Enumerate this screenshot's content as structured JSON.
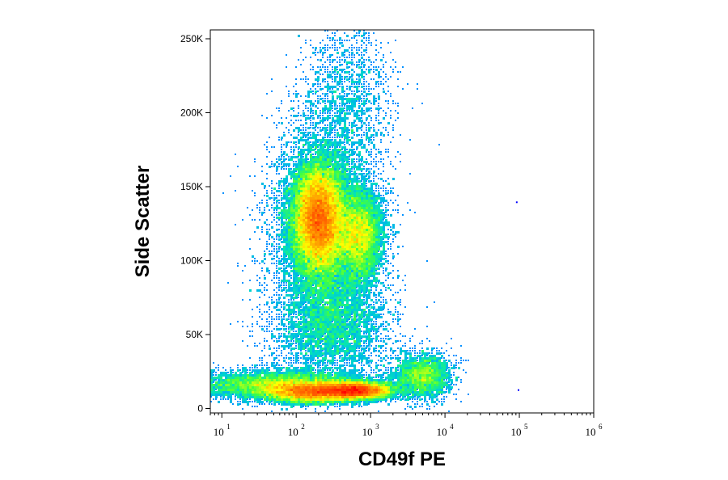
{
  "chart_data": {
    "type": "heatmap",
    "subtype": "flow-cytometry-density-dot-plot",
    "title": "",
    "xlabel": "CD49f PE",
    "ylabel": "Side Scatter",
    "xscale": "log",
    "yscale": "linear",
    "xlim": [
      7,
      1000000
    ],
    "ylim": [
      -3000,
      256000
    ],
    "x_ticks": [
      {
        "value": 10,
        "base": "10",
        "exp": "1"
      },
      {
        "value": 100,
        "base": "10",
        "exp": "2"
      },
      {
        "value": 1000,
        "base": "10",
        "exp": "3"
      },
      {
        "value": 10000,
        "base": "10",
        "exp": "4"
      },
      {
        "value": 100000,
        "base": "10",
        "exp": "5"
      },
      {
        "value": 1000000,
        "base": "10",
        "exp": "6"
      }
    ],
    "y_ticks": [
      {
        "value": 0,
        "label": "0"
      },
      {
        "value": 50000,
        "label": "50K"
      },
      {
        "value": 100000,
        "label": "100K"
      },
      {
        "value": 150000,
        "label": "150K"
      },
      {
        "value": 200000,
        "label": "200K"
      },
      {
        "value": 250000,
        "label": "250K"
      }
    ],
    "grid": false,
    "legend": "none",
    "colormap": [
      "#0000ff",
      "#00a0ff",
      "#00e0c0",
      "#40ff40",
      "#ffff00",
      "#ff8000",
      "#ff0000"
    ],
    "populations": [
      {
        "name": "main population",
        "center_x": 200,
        "center_y": 128000,
        "sd_log10_x": 0.17,
        "sd_y": 18000,
        "weight": 0.3
      },
      {
        "name": "secondary population",
        "center_x": 700,
        "center_y": 117000,
        "sd_log10_x": 0.16,
        "sd_y": 15000,
        "weight": 0.09
      },
      {
        "name": "diffuse halo",
        "center_x": 250,
        "center_y": 120000,
        "sd_log10_x": 0.35,
        "sd_y": 38000,
        "weight": 0.14
      },
      {
        "name": "low-scatter band (peak)",
        "center_x": 600,
        "center_y": 12000,
        "sd_log10_x": 0.25,
        "sd_y": 3000,
        "weight": 0.12
      },
      {
        "name": "low-scatter band (left)",
        "center_x": 150,
        "center_y": 11000,
        "sd_log10_x": 0.3,
        "sd_y": 3500,
        "weight": 0.1
      },
      {
        "name": "low-scatter band (spread)",
        "center_x": 60,
        "center_y": 16000,
        "sd_log10_x": 0.6,
        "sd_y": 5000,
        "weight": 0.09
      },
      {
        "name": "low-scatter tail",
        "center_x": 5000,
        "center_y": 22000,
        "sd_log10_x": 0.2,
        "sd_y": 8000,
        "weight": 0.04
      },
      {
        "name": "sparse middle events",
        "center_x": 300,
        "center_y": 55000,
        "sd_log10_x": 0.4,
        "sd_y": 18000,
        "weight": 0.05
      },
      {
        "name": "upper tail",
        "center_x": 500,
        "center_y": 215000,
        "sd_log10_x": 0.3,
        "sd_y": 25000,
        "weight": 0.02
      }
    ],
    "outliers": [
      {
        "x": 90000,
        "y": 140000
      },
      {
        "x": 95000,
        "y": 13000
      }
    ]
  }
}
